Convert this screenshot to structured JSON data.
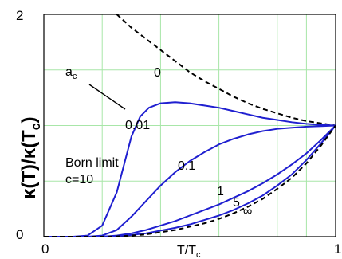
{
  "chart_data": {
    "type": "line",
    "xlabel": "T/T",
    "xlabel_sub": "c",
    "ylabel": "κ(T)/κ(T",
    "ylabel_sub": "c",
    "ylabel_close": ")",
    "xlim": [
      0,
      1
    ],
    "ylim": [
      0,
      2
    ],
    "x_ticks": [
      "0",
      "1"
    ],
    "y_ticks": [
      "0",
      "2"
    ],
    "grid": true,
    "annotations": {
      "ac_label": "a",
      "ac_sub": "c",
      "born_limit": "Born limit",
      "c_value": "c=10"
    },
    "series": [
      {
        "name": "0",
        "style": "dashed",
        "x": [
          0.25,
          0.3,
          0.35,
          0.4,
          0.45,
          0.5,
          0.55,
          0.6,
          0.65,
          0.7,
          0.75,
          0.8,
          0.85,
          0.9,
          0.95,
          1.0
        ],
        "y": [
          2.0,
          1.88,
          1.78,
          1.68,
          1.58,
          1.48,
          1.4,
          1.33,
          1.26,
          1.2,
          1.15,
          1.11,
          1.07,
          1.04,
          1.02,
          1.0
        ]
      },
      {
        "name": "0.01",
        "style": "solid",
        "x": [
          0.0,
          0.1,
          0.15,
          0.2,
          0.25,
          0.28,
          0.3,
          0.33,
          0.36,
          0.4,
          0.45,
          0.5,
          0.55,
          0.6,
          0.65,
          0.7,
          0.75,
          0.8,
          0.85,
          0.9,
          0.95,
          1.0
        ],
        "y": [
          0.0,
          0.0,
          0.01,
          0.1,
          0.4,
          0.7,
          0.9,
          1.08,
          1.16,
          1.2,
          1.21,
          1.2,
          1.18,
          1.16,
          1.13,
          1.1,
          1.07,
          1.05,
          1.03,
          1.015,
          1.005,
          1.0
        ]
      },
      {
        "name": "0.1",
        "style": "solid",
        "x": [
          0.0,
          0.15,
          0.2,
          0.25,
          0.3,
          0.35,
          0.4,
          0.45,
          0.5,
          0.55,
          0.6,
          0.65,
          0.7,
          0.75,
          0.8,
          0.85,
          0.9,
          0.95,
          1.0
        ],
        "y": [
          0.0,
          0.0,
          0.01,
          0.06,
          0.18,
          0.32,
          0.46,
          0.58,
          0.68,
          0.76,
          0.83,
          0.88,
          0.92,
          0.95,
          0.97,
          0.98,
          0.99,
          0.995,
          1.0
        ]
      },
      {
        "name": "1",
        "style": "solid",
        "x": [
          0.0,
          0.2,
          0.25,
          0.3,
          0.35,
          0.4,
          0.45,
          0.5,
          0.55,
          0.6,
          0.65,
          0.7,
          0.75,
          0.8,
          0.85,
          0.9,
          0.95,
          1.0
        ],
        "y": [
          0.0,
          0.0,
          0.01,
          0.03,
          0.06,
          0.1,
          0.14,
          0.19,
          0.24,
          0.29,
          0.35,
          0.41,
          0.48,
          0.56,
          0.65,
          0.75,
          0.87,
          1.0
        ]
      },
      {
        "name": "5",
        "style": "solid",
        "x": [
          0.0,
          0.2,
          0.25,
          0.3,
          0.35,
          0.4,
          0.45,
          0.5,
          0.55,
          0.6,
          0.65,
          0.7,
          0.75,
          0.8,
          0.85,
          0.9,
          0.95,
          1.0
        ],
        "y": [
          0.0,
          0.0,
          0.005,
          0.015,
          0.03,
          0.055,
          0.08,
          0.11,
          0.15,
          0.19,
          0.24,
          0.3,
          0.37,
          0.46,
          0.56,
          0.69,
          0.84,
          1.0
        ]
      },
      {
        "name": "∞",
        "style": "dashed",
        "x": [
          0.0,
          0.2,
          0.25,
          0.3,
          0.35,
          0.4,
          0.45,
          0.5,
          0.55,
          0.6,
          0.65,
          0.7,
          0.75,
          0.8,
          0.85,
          0.9,
          0.95,
          1.0
        ],
        "y": [
          0.0,
          0.0,
          0.003,
          0.01,
          0.02,
          0.04,
          0.06,
          0.09,
          0.12,
          0.16,
          0.21,
          0.27,
          0.34,
          0.43,
          0.53,
          0.66,
          0.82,
          1.0
        ]
      }
    ],
    "colors": {
      "solid": "#1f1fd0",
      "dashed": "#000000",
      "grid": "#a8e6a8",
      "axis": "#000000"
    }
  }
}
